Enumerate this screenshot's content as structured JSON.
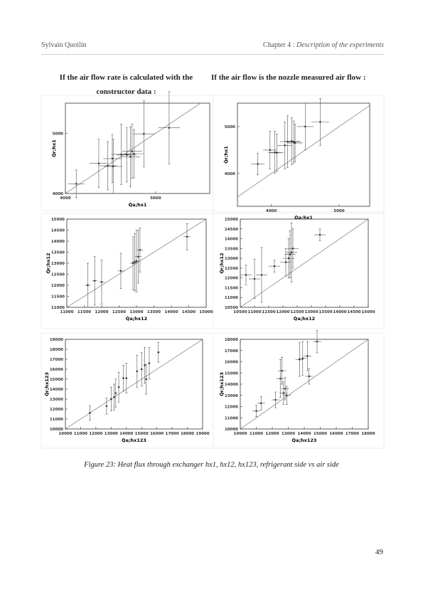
{
  "header": {
    "left": "Sylvain Quoilin",
    "right_prefix": "Chapter 4 : ",
    "right_title": "Description of the experiments"
  },
  "headings": [
    "If the air flow rate is calculated with the constructor data :",
    "If the air flow is the nozzle measured air flow :"
  ],
  "caption": "Figure 23: Heat flux through exchanger hx1, hx12, hx123, refrigerant side vs air side",
  "page_number": "49",
  "chart_data": [
    {
      "type": "scatter",
      "x_label": "Q̇a;hx1",
      "y_label": "Q̇r;hx1",
      "xlim": [
        4000,
        5600
      ],
      "ylim": [
        4000,
        5500
      ],
      "xticks": [
        4000,
        5000
      ],
      "yticks": [
        4000,
        5000
      ],
      "x": [
        4120,
        4370,
        4470,
        4530,
        4520,
        4620,
        4680,
        4720,
        4740,
        4760,
        4870,
        5150
      ],
      "values": [
        4160,
        4500,
        4460,
        4450,
        4580,
        4650,
        4640,
        4610,
        4700,
        4660,
        4990,
        5090
      ],
      "x_err": [
        90,
        100,
        100,
        100,
        100,
        110,
        110,
        110,
        110,
        110,
        120,
        120
      ],
      "y_err": [
        230,
        400,
        400,
        450,
        400,
        500,
        450,
        500,
        450,
        400,
        550,
        600
      ],
      "color": "#222"
    },
    {
      "type": "scatter",
      "x_label": "Q̇a;hx1",
      "y_label": "Q̇r;hx1",
      "xlim": [
        3500,
        5450
      ],
      "ylim": [
        3300,
        5500
      ],
      "xticks": [
        4000,
        5000
      ],
      "yticks": [
        4000,
        5000
      ],
      "x": [
        3800,
        3980,
        4050,
        4080,
        4200,
        4240,
        4300,
        4330,
        4350,
        4500,
        4720
      ],
      "values": [
        4200,
        4500,
        4450,
        4440,
        4600,
        4680,
        4690,
        4670,
        4650,
        5000,
        5100
      ],
      "x_err": [
        100,
        100,
        100,
        110,
        110,
        110,
        110,
        110,
        110,
        120,
        130
      ],
      "y_err": [
        230,
        400,
        450,
        400,
        500,
        550,
        500,
        450,
        400,
        500,
        500
      ],
      "color": "#222"
    },
    {
      "type": "scatter",
      "x_label": "Q̇a;hx12",
      "y_label": "Q̇r;hx12",
      "xlim": [
        11000,
        15000
      ],
      "ylim": [
        11000,
        15000
      ],
      "xticks": [
        11000,
        11500,
        12000,
        12500,
        13000,
        13500,
        14000,
        14500,
        15000
      ],
      "yticks": [
        11000,
        11500,
        12000,
        12500,
        13000,
        13500,
        14000,
        14500,
        15000
      ],
      "x": [
        11600,
        11800,
        12000,
        12550,
        12900,
        12950,
        13000,
        13050,
        13100,
        14450
      ],
      "values": [
        12000,
        12200,
        12150,
        12650,
        13000,
        13050,
        13100,
        13300,
        13600,
        14200
      ],
      "x_err": [
        80,
        80,
        80,
        90,
        90,
        90,
        90,
        90,
        90,
        100
      ],
      "y_err": [
        1000,
        1100,
        1000,
        800,
        1200,
        1300,
        1400,
        1200,
        1000,
        600
      ],
      "color": "#222"
    },
    {
      "type": "scatter",
      "x_label": "Q̇a;hx12",
      "y_label": "Q̇r;hx12",
      "xlim": [
        10500,
        15000
      ],
      "ylim": [
        10500,
        15000
      ],
      "xticks": [
        10500,
        11000,
        11500,
        12000,
        12500,
        13000,
        13500,
        14000,
        14500,
        15000
      ],
      "yticks": [
        10500,
        11000,
        11500,
        12000,
        12500,
        13000,
        13500,
        14000,
        14500,
        15000
      ],
      "x": [
        10700,
        11000,
        11250,
        11700,
        12100,
        12200,
        12250,
        12300,
        12350,
        13300
      ],
      "values": [
        12150,
        11950,
        12150,
        12600,
        12800,
        13000,
        13200,
        13300,
        13500,
        14200
      ],
      "x_err": [
        200,
        200,
        200,
        200,
        200,
        200,
        200,
        200,
        200,
        200
      ],
      "y_err": [
        500,
        1000,
        1400,
        300,
        700,
        1000,
        1200,
        1500,
        1000,
        300
      ],
      "color": "#222"
    },
    {
      "type": "scatter",
      "x_label": "Q̇a;hx123",
      "y_label": "Q̇r;hx123",
      "xlim": [
        10000,
        19000
      ],
      "ylim": [
        10000,
        19000
      ],
      "xticks": [
        10000,
        11000,
        12000,
        13000,
        14000,
        15000,
        16000,
        17000,
        18000,
        19000
      ],
      "yticks": [
        10000,
        11000,
        12000,
        13000,
        14000,
        15000,
        16000,
        17000,
        18000,
        19000
      ],
      "x": [
        11600,
        12700,
        13000,
        13200,
        13300,
        13500,
        13800,
        14000,
        14700,
        15000,
        15200,
        15300,
        15500,
        16100
      ],
      "values": [
        11600,
        12300,
        13000,
        13200,
        13600,
        14200,
        15100,
        15100,
        15800,
        16000,
        16400,
        15000,
        16600,
        17700
      ],
      "x_err": [
        60,
        60,
        60,
        60,
        60,
        60,
        70,
        70,
        70,
        70,
        70,
        70,
        70,
        80
      ],
      "y_err": [
        700,
        800,
        1200,
        1300,
        1400,
        1500,
        1300,
        1500,
        1600,
        1700,
        1800,
        1500,
        1600,
        1000
      ],
      "color": "#222"
    },
    {
      "type": "scatter",
      "x_label": "Q̇a;hx123",
      "y_label": "Q̇r;hx123",
      "xlim": [
        10000,
        18000
      ],
      "ylim": [
        10000,
        18000
      ],
      "xticks": [
        10000,
        11000,
        12000,
        13000,
        14000,
        15000,
        16000,
        17000,
        18000
      ],
      "yticks": [
        10000,
        11000,
        12000,
        13000,
        14000,
        15000,
        16000,
        17000,
        18000
      ],
      "x": [
        11000,
        11300,
        12200,
        12500,
        12600,
        12700,
        12800,
        12900,
        13700,
        13900,
        14200,
        14300,
        14800
      ],
      "values": [
        11600,
        12300,
        12600,
        14500,
        15200,
        13200,
        13600,
        13000,
        16200,
        16300,
        16500,
        14700,
        17800
      ],
      "x_err": [
        250,
        250,
        250,
        250,
        250,
        250,
        250,
        250,
        250,
        250,
        250,
        250,
        250
      ],
      "y_err": [
        500,
        600,
        700,
        1700,
        1200,
        1000,
        1000,
        800,
        1500,
        1500,
        1300,
        700,
        1000
      ],
      "color": "#222"
    }
  ]
}
